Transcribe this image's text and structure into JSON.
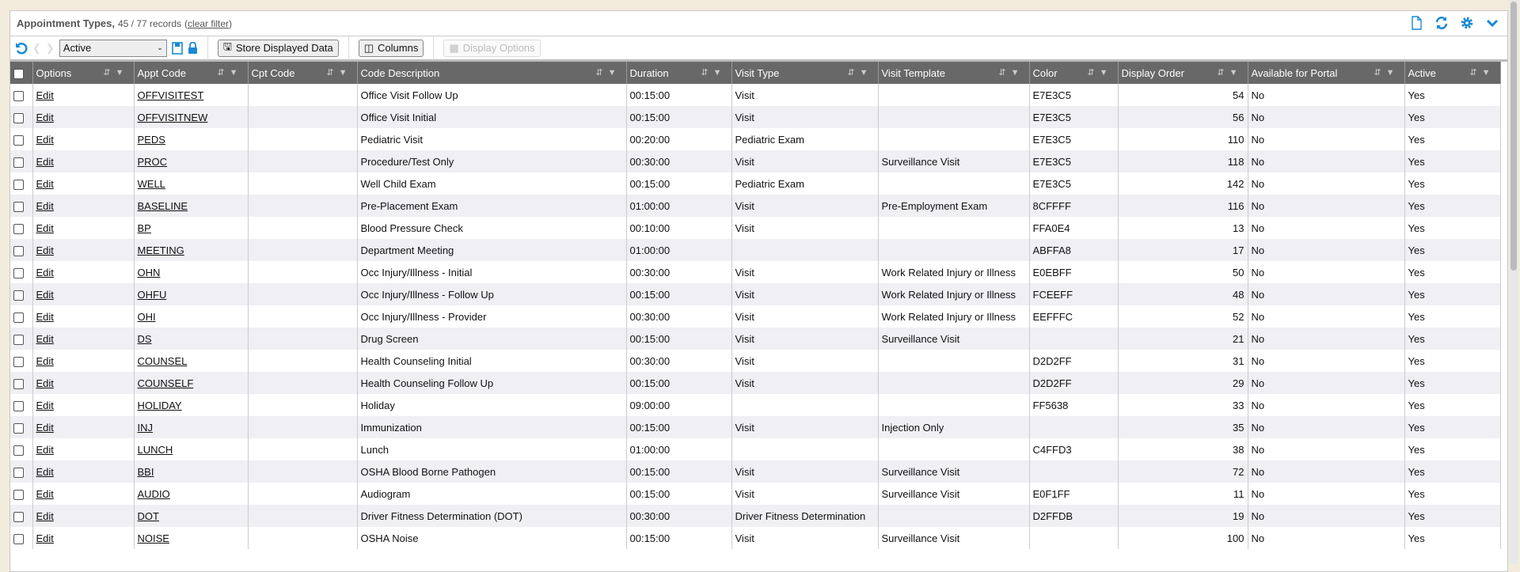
{
  "header": {
    "title": "Appointment Types,",
    "count": "45 / 77 records",
    "clear_filter": "clear filter",
    "icons": [
      "document-icon",
      "refresh-icon",
      "gear-icon",
      "chevron-down-icon"
    ],
    "accent": "#1a8ad4"
  },
  "toolbar": {
    "filter_value": "Active",
    "store_label": "Store Displayed Data",
    "columns_label": "Columns",
    "display_options_label": "Display Options"
  },
  "columns": [
    "Options",
    "Appt Code",
    "Cpt Code",
    "Code Description",
    "Duration",
    "Visit Type",
    "Visit Template",
    "Color",
    "Display Order",
    "Available for Portal",
    "Active"
  ],
  "rows": [
    [
      "Edit",
      "OFFVISITEST",
      "",
      "Office Visit Follow Up",
      "00:15:00",
      "Visit",
      "",
      "E7E3C5",
      "54",
      "No",
      "Yes"
    ],
    [
      "Edit",
      "OFFVISITNEW",
      "",
      "Office Visit Initial",
      "00:15:00",
      "Visit",
      "",
      "E7E3C5",
      "56",
      "No",
      "Yes"
    ],
    [
      "Edit",
      "PEDS",
      "",
      "Pediatric Visit",
      "00:20:00",
      "Pediatric Exam",
      "",
      "E7E3C5",
      "110",
      "No",
      "Yes"
    ],
    [
      "Edit",
      "PROC",
      "",
      "Procedure/Test Only",
      "00:30:00",
      "Visit",
      "Surveillance Visit",
      "E7E3C5",
      "118",
      "No",
      "Yes"
    ],
    [
      "Edit",
      "WELL",
      "",
      "Well Child Exam",
      "00:15:00",
      "Pediatric Exam",
      "",
      "E7E3C5",
      "142",
      "No",
      "Yes"
    ],
    [
      "Edit",
      "BASELINE",
      "",
      "Pre-Placement Exam",
      "01:00:00",
      "Visit",
      "Pre-Employment Exam",
      "8CFFFF",
      "116",
      "No",
      "Yes"
    ],
    [
      "Edit",
      "BP",
      "",
      "Blood Pressure Check",
      "00:10:00",
      "Visit",
      "",
      "FFA0E4",
      "13",
      "No",
      "Yes"
    ],
    [
      "Edit",
      "MEETING",
      "",
      "Department Meeting",
      "01:00:00",
      "",
      "",
      "ABFFA8",
      "17",
      "No",
      "Yes"
    ],
    [
      "Edit",
      "OHN",
      "",
      "Occ Injury/Illness - Initial",
      "00:30:00",
      "Visit",
      "Work Related Injury or Illness",
      "E0EBFF",
      "50",
      "No",
      "Yes"
    ],
    [
      "Edit",
      "OHFU",
      "",
      "Occ Injury/Illness - Follow Up",
      "00:15:00",
      "Visit",
      "Work Related Injury or Illness",
      "FCEEFF",
      "48",
      "No",
      "Yes"
    ],
    [
      "Edit",
      "OHI",
      "",
      "Occ Injury/Illness - Provider",
      "00:30:00",
      "Visit",
      "Work Related Injury or Illness",
      "EEFFFC",
      "52",
      "No",
      "Yes"
    ],
    [
      "Edit",
      "DS",
      "",
      "Drug Screen",
      "00:15:00",
      "Visit",
      "Surveillance Visit",
      "",
      "21",
      "No",
      "Yes"
    ],
    [
      "Edit",
      "COUNSEL",
      "",
      "Health Counseling Initial",
      "00:30:00",
      "Visit",
      "",
      "D2D2FF",
      "31",
      "No",
      "Yes"
    ],
    [
      "Edit",
      "COUNSELF",
      "",
      "Health Counseling Follow Up",
      "00:15:00",
      "Visit",
      "",
      "D2D2FF",
      "29",
      "No",
      "Yes"
    ],
    [
      "Edit",
      "HOLIDAY",
      "",
      "Holiday",
      "09:00:00",
      "",
      "",
      "FF5638",
      "33",
      "No",
      "Yes"
    ],
    [
      "Edit",
      "INJ",
      "",
      "Immunization",
      "00:15:00",
      "Visit",
      "Injection Only",
      "",
      "35",
      "No",
      "Yes"
    ],
    [
      "Edit",
      "LUNCH",
      "",
      "Lunch",
      "01:00:00",
      "",
      "",
      "C4FFD3",
      "38",
      "No",
      "Yes"
    ],
    [
      "Edit",
      "BBI",
      "",
      "OSHA Blood Borne Pathogen",
      "00:15:00",
      "Visit",
      "Surveillance Visit",
      "",
      "72",
      "No",
      "Yes"
    ],
    [
      "Edit",
      "AUDIO",
      "",
      "Audiogram",
      "00:15:00",
      "Visit",
      "Surveillance Visit",
      "E0F1FF",
      "11",
      "No",
      "Yes"
    ],
    [
      "Edit",
      "DOT",
      "",
      "Driver Fitness Determination (DOT)",
      "00:30:00",
      "Driver Fitness Determination",
      "",
      "D2FFDB",
      "19",
      "No",
      "Yes"
    ],
    [
      "Edit",
      "NOISE",
      "",
      "OSHA Noise",
      "00:15:00",
      "Visit",
      "Surveillance Visit",
      "",
      "100",
      "No",
      "Yes"
    ]
  ]
}
